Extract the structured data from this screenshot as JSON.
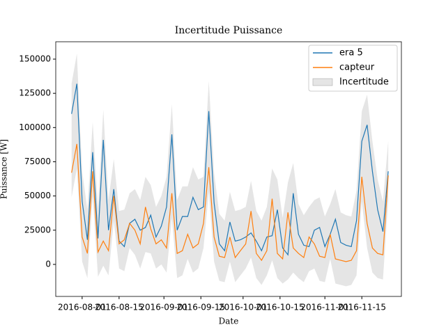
{
  "chart_data": {
    "type": "line",
    "title": "Incertitude Puissance",
    "xlabel": "Date",
    "ylabel": "Puissance [W]",
    "x_start": "2016-07-28",
    "x_step_days": 2,
    "series": [
      {
        "name": "era 5",
        "color": "#1f77b4",
        "values": [
          110000,
          132000,
          46000,
          18000,
          82000,
          19000,
          91000,
          25000,
          55000,
          17000,
          13000,
          30000,
          33000,
          25000,
          27000,
          36000,
          20000,
          28000,
          42000,
          95000,
          25000,
          35000,
          35000,
          49000,
          40000,
          42000,
          112000,
          45000,
          15000,
          10000,
          31000,
          17000,
          18000,
          20000,
          23000,
          17000,
          10000,
          20000,
          21000,
          40000,
          12000,
          7000,
          52000,
          22000,
          14000,
          13000,
          25000,
          27000,
          13000,
          22000,
          33000,
          16000,
          14000,
          13000,
          32000,
          90000,
          102000,
          68000,
          40000,
          24000,
          68000
        ]
      },
      {
        "name": "capteur",
        "color": "#ff7f0e",
        "values": [
          67000,
          88000,
          20000,
          8000,
          68000,
          9000,
          17000,
          10000,
          50000,
          15000,
          18000,
          30000,
          25000,
          15000,
          42000,
          26000,
          15000,
          18000,
          12000,
          52000,
          8000,
          10000,
          22000,
          12000,
          15000,
          30000,
          71000,
          20000,
          6000,
          5000,
          20000,
          5000,
          10000,
          15000,
          39000,
          8000,
          3000,
          10000,
          48000,
          8000,
          4000,
          38000,
          12000,
          8000,
          5000,
          20000,
          15000,
          6000,
          5000,
          22000,
          4000,
          3000,
          2000,
          3000,
          10000,
          64000,
          30000,
          12000,
          8000,
          7000,
          65000
        ]
      },
      {
        "name": "Incertitude",
        "color": "#bdbdbd",
        "band": true,
        "lower": [
          49000,
          70000,
          2000,
          -10000,
          50000,
          -9000,
          -1000,
          -8000,
          32000,
          -3000,
          -5000,
          12000,
          7000,
          -3000,
          9000,
          8000,
          -3000,
          0,
          -6000,
          34000,
          -10000,
          -8000,
          4000,
          -6000,
          -3000,
          12000,
          53000,
          2000,
          -12000,
          -13000,
          2000,
          -13000,
          -8000,
          -3000,
          5000,
          -10000,
          -15000,
          -8000,
          3000,
          -10000,
          -14000,
          -11000,
          -6000,
          -10000,
          -13000,
          -5000,
          -3000,
          -12000,
          -13000,
          4000,
          -14000,
          -15000,
          -16000,
          -15000,
          -8000,
          46000,
          12000,
          -6000,
          -10000,
          -11000,
          47000
        ],
        "upper": [
          132000,
          154000,
          68000,
          40000,
          104000,
          41000,
          113000,
          47000,
          77000,
          39000,
          40000,
          52000,
          55000,
          47000,
          64000,
          58000,
          42000,
          50000,
          64000,
          117000,
          47000,
          57000,
          57000,
          71000,
          62000,
          64000,
          134000,
          67000,
          37000,
          32000,
          53000,
          39000,
          40000,
          42000,
          61000,
          39000,
          32000,
          42000,
          70000,
          62000,
          34000,
          60000,
          74000,
          44000,
          36000,
          42000,
          47000,
          49000,
          35000,
          44000,
          55000,
          38000,
          36000,
          35000,
          54000,
          112000,
          124000,
          90000,
          62000,
          46000,
          90000
        ]
      }
    ],
    "xlim": [
      "2016-07-22",
      "2016-11-30"
    ],
    "xticks": [
      "2016-08-01",
      "2016-08-15",
      "2016-09-01",
      "2016-09-15",
      "2016-10-01",
      "2016-10-15",
      "2016-11-01",
      "2016-11-15"
    ],
    "ylim": [
      -23400,
      162700
    ],
    "yticks": [
      0,
      25000,
      50000,
      75000,
      100000,
      125000,
      150000
    ],
    "legend": "upper right",
    "grid": false
  }
}
